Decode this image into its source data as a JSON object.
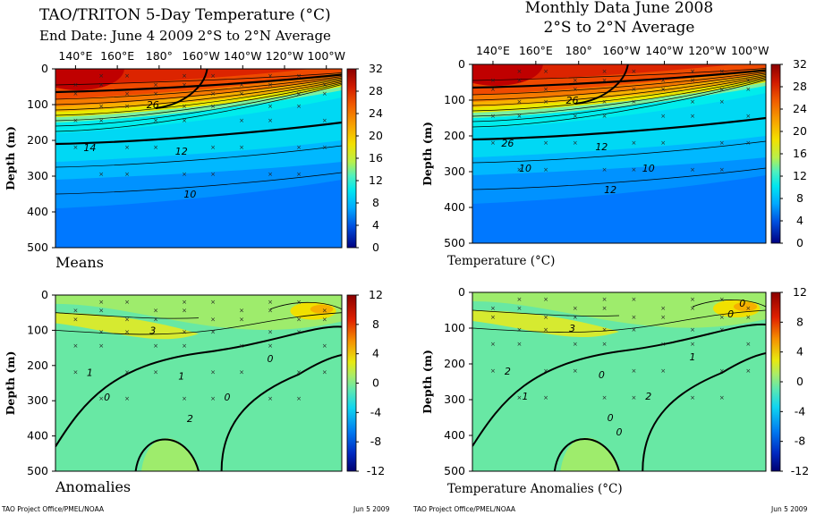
{
  "left": {
    "title_line1": "TAO/TRITON 5-Day Temperature (°C)",
    "title_line2": "End Date: June 4 2009   2°S to 2°N Average",
    "means_label": "Means",
    "anomalies_label": "Anomalies",
    "footer_left": "TAO Project Office/PMEL/NOAA",
    "footer_right": "Jun  5 2009"
  },
  "right": {
    "title_line1": "Monthly Data June 2008",
    "title_line2": "2°S to 2°N Average",
    "means_label": "Temperature (°C)",
    "anomalies_label": "Temperature Anomalies (°C)",
    "footer_left": "TAO Project Office/PMEL/NOAA",
    "footer_right": "Jun  5 2009"
  },
  "chart_data": [
    {
      "type": "heatmap",
      "panel": "left-means",
      "xlabel": "",
      "ylabel": "Depth (m)",
      "x_ticks": [
        "140°E",
        "160°E",
        "180°",
        "160°W",
        "140°W",
        "120°W",
        "100°W"
      ],
      "y_ticks": [
        0,
        100,
        200,
        300,
        400,
        500
      ],
      "ylim": [
        500,
        0
      ],
      "colorbar_ticks": [
        32,
        28,
        24,
        20,
        16,
        12,
        8,
        4,
        0
      ],
      "contour_labels": [
        "26",
        "14",
        "12",
        "10"
      ],
      "colors": {
        "low": "#000080",
        "high": "#8b0000"
      }
    },
    {
      "type": "heatmap",
      "panel": "right-means",
      "xlabel": "",
      "ylabel": "Depth (m)",
      "x_ticks": [
        "140°E",
        "160°E",
        "180°",
        "160°W",
        "140°W",
        "120°W",
        "100°W"
      ],
      "y_ticks": [
        0,
        100,
        200,
        300,
        400,
        500
      ],
      "ylim": [
        500,
        0
      ],
      "colorbar_ticks": [
        32,
        28,
        24,
        20,
        16,
        12,
        8,
        4,
        0
      ],
      "contour_labels": [
        "26",
        "26",
        "12",
        "12",
        "10",
        "10"
      ]
    },
    {
      "type": "heatmap",
      "panel": "left-anomalies",
      "xlabel": "",
      "ylabel": "Depth (m)",
      "y_ticks": [
        0,
        100,
        200,
        300,
        400,
        500
      ],
      "ylim": [
        500,
        0
      ],
      "colorbar_ticks": [
        12,
        8,
        4,
        0,
        -4,
        -8,
        -12
      ],
      "contour_labels": [
        "3",
        "1",
        "1",
        "2",
        "0",
        "0",
        "0"
      ]
    },
    {
      "type": "heatmap",
      "panel": "right-anomalies",
      "xlabel": "",
      "ylabel": "Depth (m)",
      "y_ticks": [
        0,
        100,
        200,
        300,
        400,
        500
      ],
      "ylim": [
        500,
        0
      ],
      "colorbar_ticks": [
        12,
        8,
        4,
        0,
        -4,
        -8,
        -12
      ],
      "contour_labels": [
        "3",
        "2",
        "0",
        "0",
        "1",
        "2",
        "1",
        "0",
        "0",
        "0"
      ]
    }
  ]
}
